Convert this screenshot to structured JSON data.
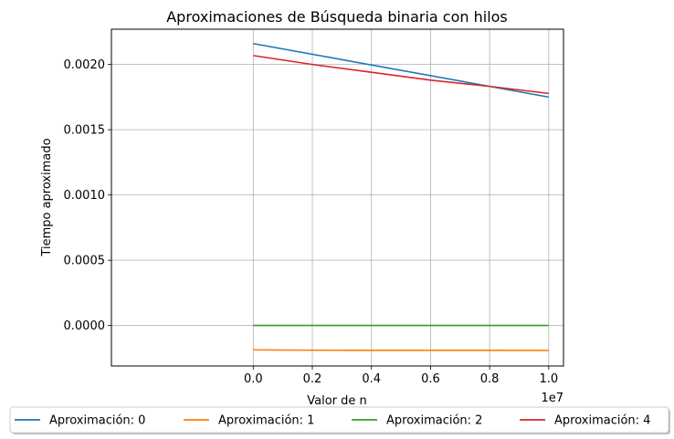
{
  "chart_data": {
    "type": "line",
    "title": "Aproximaciones de Búsqueda binaria con hilos",
    "xlabel": "Valor de n",
    "ylabel": "Tiempo aproximado",
    "x_offset_label": "1e7",
    "xlim": [
      -4.8,
      10.5
    ],
    "ylim": [
      -0.00031,
      0.00227
    ],
    "xticks": [
      0.0,
      2.0,
      4.0,
      6.0,
      8.0,
      10.0
    ],
    "xtick_labels": [
      "0.0",
      "0.2",
      "0.4",
      "0.6",
      "0.8",
      "1.0"
    ],
    "yticks": [
      0.0,
      0.0005,
      0.001,
      0.0015,
      0.002
    ],
    "ytick_labels": [
      "0.0000",
      "0.0005",
      "0.0010",
      "0.0015",
      "0.0020"
    ],
    "grid": true,
    "legend_placement": "below plot, single row",
    "series": [
      {
        "name": "Aproximación: 0",
        "color": "#1f77b4",
        "x": [
          0,
          10
        ],
        "y": [
          0.00216,
          0.00175
        ]
      },
      {
        "name": "Aproximación: 1",
        "color": "#ff7f0e",
        "x": [
          0,
          0.05,
          0.5,
          1,
          2,
          4,
          6,
          8,
          10
        ],
        "y": [
          -0.000182,
          -0.000186,
          -0.000187,
          -0.000188,
          -0.000189,
          -0.00019,
          -0.00019,
          -0.00019,
          -0.000191
        ]
      },
      {
        "name": "Aproximación: 2",
        "color": "#2ca02c",
        "x": [
          0,
          10
        ],
        "y": [
          1e-06,
          1e-06
        ]
      },
      {
        "name": "Aproximación: 4",
        "color": "#d62728",
        "x": [
          0,
          2,
          4,
          6,
          8,
          10
        ],
        "y": [
          0.002068,
          0.002,
          0.00194,
          0.00188,
          0.001832,
          0.001778
        ]
      }
    ]
  }
}
